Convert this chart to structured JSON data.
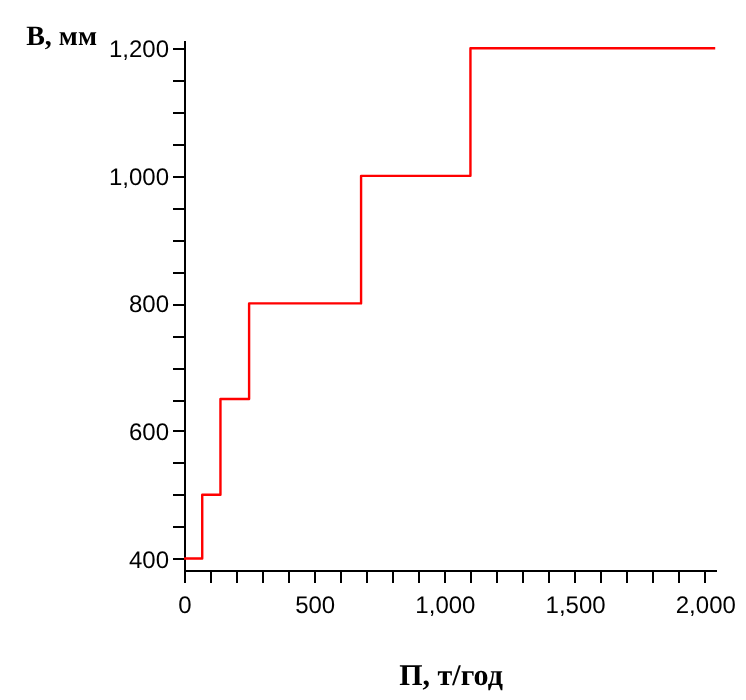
{
  "chart_data": {
    "type": "step",
    "xlabel": "П, т/год",
    "ylabel": "В, мм",
    "x": [
      0,
      70,
      140,
      250,
      680,
      1100,
      2040
    ],
    "series": [
      {
        "color": "#ff0000",
        "values": [
          400,
          500,
          650,
          800,
          1000,
          1200,
          1200
        ]
      }
    ],
    "xlim": [
      0,
      2043
    ],
    "ylim": [
      382,
      1213
    ],
    "xticks": [
      0,
      {
        "value": 100,
        "label": null
      },
      {
        "value": 200,
        "label": null
      },
      {
        "value": 300,
        "label": null
      },
      {
        "value": 400,
        "label": null
      },
      500,
      {
        "value": 600,
        "label": null
      },
      {
        "value": 700,
        "label": null
      },
      {
        "value": 800,
        "label": null
      },
      {
        "value": 900,
        "label": null
      },
      {
        "value": 1000,
        "label": "1,000"
      },
      {
        "value": 1100,
        "label": null
      },
      {
        "value": 1200,
        "label": null
      },
      {
        "value": 1300,
        "label": null
      },
      {
        "value": 1400,
        "label": null
      },
      {
        "value": 1500,
        "label": "1,500"
      },
      {
        "value": 1600,
        "label": null
      },
      {
        "value": 1700,
        "label": null
      },
      {
        "value": 1800,
        "label": null
      },
      {
        "value": 1900,
        "label": null
      },
      {
        "value": 2000,
        "label": "2,000"
      }
    ],
    "yticks": [
      400,
      {
        "value": 450,
        "label": null
      },
      {
        "value": 500,
        "label": null
      },
      {
        "value": 550,
        "label": null
      },
      600,
      {
        "value": 650,
        "label": null
      },
      {
        "value": 700,
        "label": null
      },
      {
        "value": 750,
        "label": null
      },
      800,
      {
        "value": 850,
        "label": null
      },
      {
        "value": 900,
        "label": null
      },
      {
        "value": 950,
        "label": null
      },
      {
        "value": 1000,
        "label": "1,000"
      },
      {
        "value": 1050,
        "label": null
      },
      {
        "value": 1100,
        "label": null
      },
      {
        "value": 1150,
        "label": null
      },
      {
        "value": 1200,
        "label": "1,200"
      }
    ],
    "grid": false,
    "marker": "none",
    "line_style": "solid"
  }
}
